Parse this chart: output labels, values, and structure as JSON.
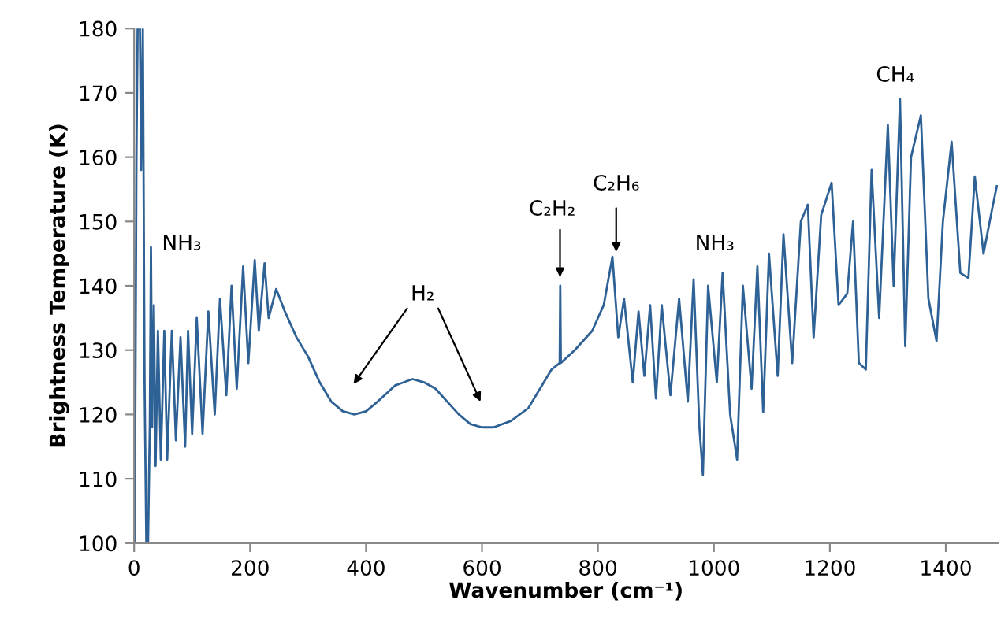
{
  "chart_data": {
    "type": "line",
    "xlabel": "Wavenumber (cm⁻¹)",
    "ylabel": "Brightness Temperature (K)",
    "xlim": [
      0,
      1490
    ],
    "xticks": [
      0,
      200,
      400,
      600,
      800,
      1000,
      1200,
      1400
    ],
    "ylim": [
      100,
      180
    ],
    "yticks": [
      100,
      110,
      120,
      130,
      140,
      150,
      160,
      170,
      180
    ],
    "grid": false,
    "legend": false,
    "series": [
      {
        "color": "#2e6195",
        "x": [
          1,
          4,
          6,
          10,
          12,
          15,
          18,
          21,
          24,
          27,
          29,
          31,
          34,
          37,
          41,
          46,
          52,
          57,
          65,
          72,
          80,
          88,
          93,
          100,
          108,
          118,
          128,
          139,
          148,
          159,
          168,
          177,
          188,
          197,
          208,
          215,
          225,
          232,
          245,
          260,
          280,
          300,
          320,
          340,
          360,
          380,
          400,
          420,
          450,
          480,
          500,
          520,
          540,
          560,
          580,
          600,
          620,
          650,
          680,
          700,
          720,
          734,
          735,
          736,
          760,
          790,
          810,
          825,
          835,
          845,
          860,
          870,
          880,
          890,
          900,
          910,
          925,
          940,
          955,
          965,
          975,
          981,
          990,
          1005,
          1015,
          1028,
          1040,
          1050,
          1065,
          1075,
          1085,
          1095,
          1110,
          1120,
          1135,
          1150,
          1162,
          1172,
          1185,
          1203,
          1215,
          1230,
          1240,
          1250,
          1262,
          1272,
          1285,
          1300,
          1310,
          1321,
          1330,
          1340,
          1357,
          1370,
          1384,
          1395,
          1410,
          1425,
          1439,
          1450,
          1465,
          1480,
          1488
        ],
        "values": [
          100,
          160,
          180,
          180,
          158,
          180,
          125,
          100,
          100,
          118,
          146,
          118,
          137,
          112,
          133,
          113,
          133,
          113,
          133,
          116,
          132,
          115,
          133,
          117,
          135,
          117,
          136,
          120,
          138,
          123,
          140,
          124,
          143,
          128,
          144,
          133,
          143.5,
          135,
          139.5,
          136,
          132,
          129,
          125,
          122,
          120.5,
          120,
          120.5,
          122,
          124.5,
          125.5,
          125,
          124,
          122,
          120,
          118.5,
          118,
          118,
          119,
          121,
          124,
          127,
          128,
          140,
          128,
          130,
          133,
          137,
          144.5,
          132,
          138,
          125,
          136,
          126,
          137,
          122.5,
          137,
          123,
          138,
          122,
          141,
          118,
          110.6,
          140,
          125,
          142,
          120,
          113,
          140,
          124,
          143,
          120.4,
          145,
          126,
          148,
          128,
          150,
          152.6,
          132,
          151,
          156,
          137,
          138.8,
          150,
          128,
          127,
          158,
          135,
          165,
          140,
          169,
          130.6,
          160,
          166.5,
          138,
          131.4,
          150,
          162.4,
          142,
          141.2,
          157,
          145,
          152,
          155.5
        ]
      }
    ],
    "annotations": [
      "NH₃",
      "H₂",
      "C₂H₂",
      "C₂H₆",
      "NH₃",
      "CH₄"
    ]
  }
}
